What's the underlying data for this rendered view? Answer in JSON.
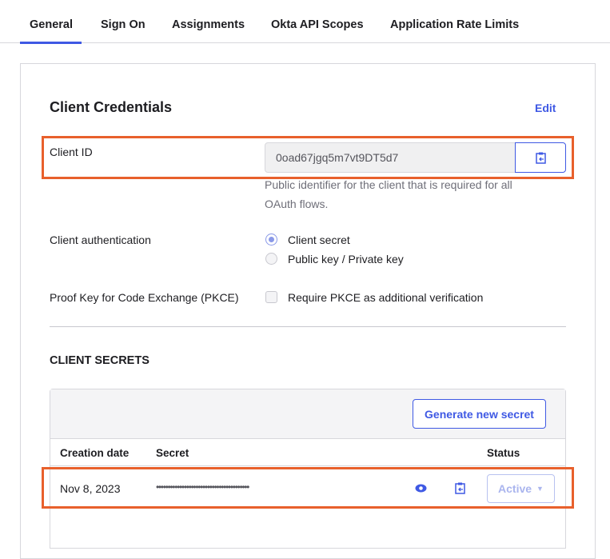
{
  "tabs": [
    "General",
    "Sign On",
    "Assignments",
    "Okta API Scopes",
    "Application Rate Limits"
  ],
  "active_tab": "General",
  "credentials": {
    "title": "Client Credentials",
    "edit_label": "Edit",
    "client_id_label": "Client ID",
    "client_id_value": "0oad67jgq5m7vt9DT5d7",
    "client_id_help": "Public identifier for the client that is required for all OAuth flows.",
    "client_auth_label": "Client authentication",
    "client_auth_options": [
      "Client secret",
      "Public key / Private key"
    ],
    "client_auth_selected": "Client secret",
    "pkce_label": "Proof Key for Code Exchange (PKCE)",
    "pkce_option": "Require PKCE as additional verification",
    "pkce_checked": false
  },
  "secrets": {
    "title": "CLIENT SECRETS",
    "generate_label": "Generate new secret",
    "columns": [
      "Creation date",
      "Secret",
      "Status"
    ],
    "rows": [
      {
        "date": "Nov 8, 2023",
        "secret": "••••••••••••••••••••••••••••••••••••••••",
        "status": "Active"
      }
    ]
  },
  "colors": {
    "accent": "#3f59e4",
    "highlight": "#e8602c"
  }
}
